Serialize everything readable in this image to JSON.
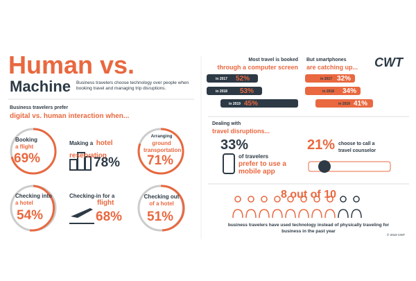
{
  "header": {
    "title_line1": "Human vs.",
    "title_line2": "Machine",
    "subtitle": "Business travelers choose technology over people when booking travel and managing trip disruptions."
  },
  "left": {
    "intro": "Business travelers prefer",
    "intro_highlight": "digital vs. human interaction when...",
    "items": [
      {
        "label": "Booking",
        "highlight": "a flight",
        "value": "69%"
      },
      {
        "label": "Making a",
        "highlight": "hotel reservation",
        "value": "78%"
      },
      {
        "label": "Arranging",
        "highlight": "ground transportation",
        "value": "71%"
      },
      {
        "label": "Checking into",
        "highlight": "a hotel",
        "value": "54%"
      },
      {
        "label": "Checking-in for a",
        "highlight": "flight",
        "value": "68%"
      },
      {
        "label": "Checking out",
        "highlight": "of a hotel",
        "value": "51%"
      }
    ]
  },
  "booking": {
    "line1": "Most travel is booked",
    "line2": "through a computer screen",
    "rows": [
      {
        "year": "in 2017",
        "value": "52%"
      },
      {
        "year": "in 2018",
        "value": "53%"
      },
      {
        "year": "in 2019",
        "value": "45%"
      }
    ]
  },
  "smartphones": {
    "line1": "But smartphones",
    "line2": "are catching up...",
    "rows": [
      {
        "year": "in 2017",
        "value": "32%"
      },
      {
        "year": "in 2018",
        "value": "34%"
      },
      {
        "year": "in 2019",
        "value": "41%"
      }
    ]
  },
  "logo": "CWT",
  "disruptions": {
    "line1": "Dealing with",
    "line2": "travel disruptions...",
    "app": {
      "value": "33%",
      "label": "of travelers",
      "highlight": "prefer to use a mobile app"
    },
    "call": {
      "value": "21%",
      "label": "choose to call a travel counselor"
    }
  },
  "tech": {
    "headline": "8 out of 10",
    "caption": "business travelers have used technology instead of physically traveling for business in the past year"
  },
  "copyright": "© 2019 CWT"
}
